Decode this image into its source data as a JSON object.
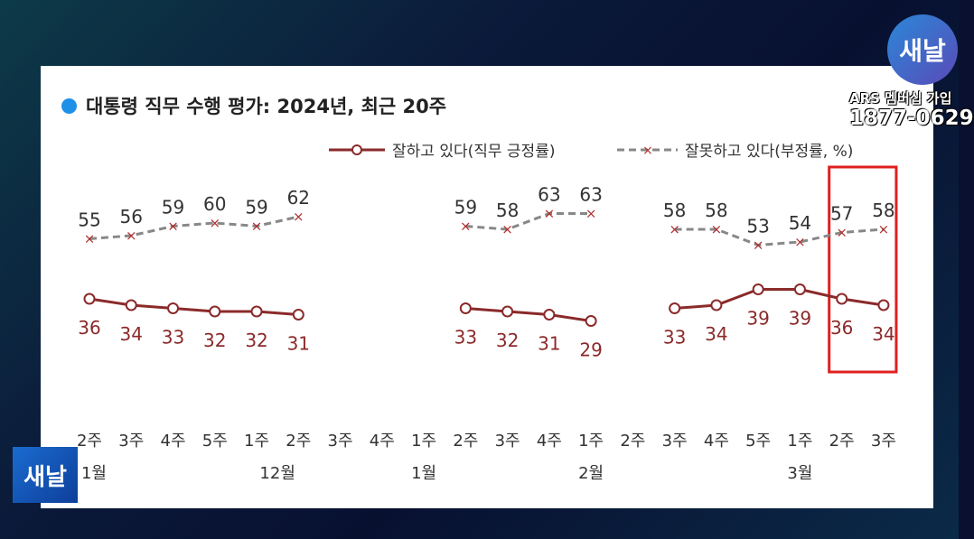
{
  "overlay": {
    "logo_text": "새날",
    "ars_text": "ARS 멤버십 가입",
    "phone": "1877-0629"
  },
  "chart_data": {
    "type": "line",
    "title": "대통령 직무 수행 평가: 2024년, 최근 20주",
    "categories": [
      "2주",
      "3주",
      "4주",
      "5주",
      "1주",
      "2주",
      "3주",
      "4주",
      "1주",
      "2주",
      "3주",
      "4주",
      "1주",
      "2주",
      "3주",
      "4주",
      "5주",
      "1주",
      "2주",
      "3주"
    ],
    "month_labels": [
      {
        "index": 0,
        "label": "1월"
      },
      {
        "index": 4.5,
        "label": "12월"
      },
      {
        "index": 8,
        "label": "1월"
      },
      {
        "index": 12,
        "label": "2월"
      },
      {
        "index": 17,
        "label": "3월"
      }
    ],
    "series": [
      {
        "name": "잘하고 있다(직무 긍정률)",
        "color": "#8b2a2a",
        "style": "solid-circle",
        "values": [
          36,
          34,
          33,
          32,
          32,
          31,
          null,
          null,
          null,
          33,
          32,
          31,
          29,
          null,
          33,
          34,
          39,
          39,
          36,
          34
        ]
      },
      {
        "name": "잘못하고 있다(부정률, %)",
        "color": "#888888",
        "style": "dash-x",
        "values": [
          55,
          56,
          59,
          60,
          59,
          62,
          null,
          null,
          null,
          59,
          58,
          63,
          63,
          null,
          58,
          58,
          53,
          54,
          57,
          58
        ]
      }
    ],
    "highlight": {
      "from_index": 18,
      "to_index": 19,
      "color": "#e02020"
    },
    "ylim": [
      0,
      100
    ],
    "legend": "top-right",
    "grid": false
  }
}
